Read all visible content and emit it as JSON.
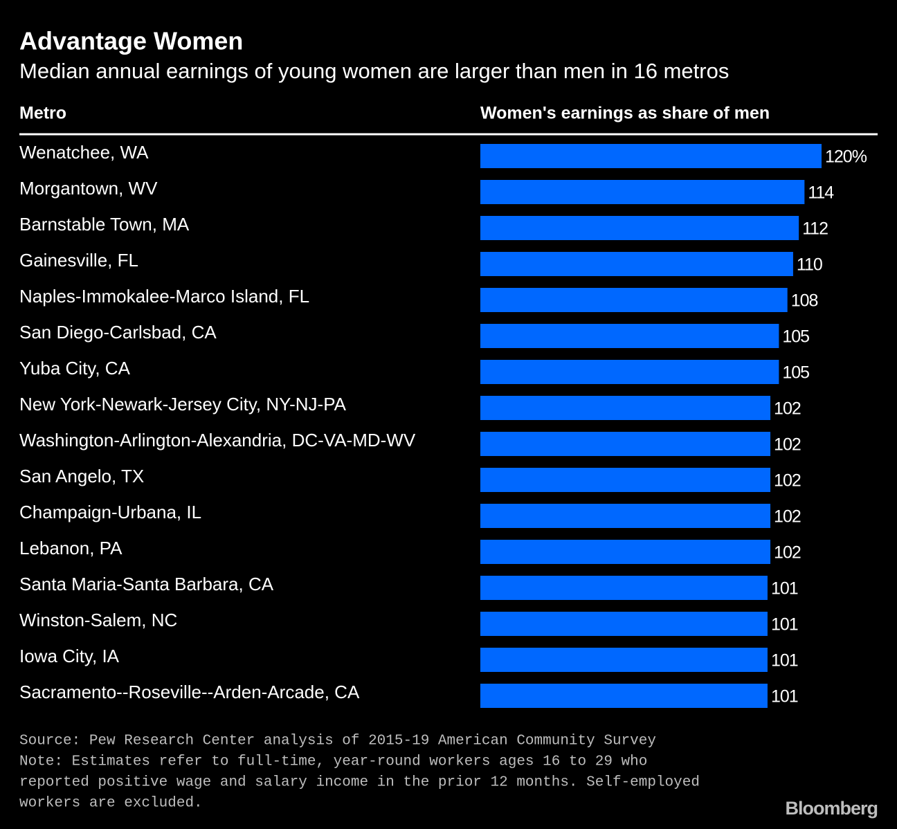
{
  "chart_data": {
    "type": "bar",
    "orientation": "horizontal",
    "title": "Advantage Women",
    "subtitle": "Median annual earnings of young women are larger than men in 16 metros",
    "category_header": "Metro",
    "value_header": "Women's earnings as share of men",
    "categories": [
      "Wenatchee, WA",
      "Morgantown, WV",
      "Barnstable Town, MA",
      "Gainesville, FL",
      "Naples-Immokalee-Marco Island, FL",
      "San Diego-Carlsbad, CA",
      "Yuba City, CA",
      "New York-Newark-Jersey City, NY-NJ-PA",
      "Washington-Arlington-Alexandria, DC-VA-MD-WV",
      "San Angelo, TX",
      "Champaign-Urbana, IL",
      "Lebanon, PA",
      "Santa Maria-Santa Barbara, CA",
      "Winston-Salem, NC",
      "Iowa City, IA",
      "Sacramento--Roseville--Arden-Arcade, CA"
    ],
    "values": [
      120,
      114,
      112,
      110,
      108,
      105,
      105,
      102,
      102,
      102,
      102,
      102,
      101,
      101,
      101,
      101
    ],
    "value_labels": [
      "120%",
      "114",
      "112",
      "110",
      "108",
      "105",
      "105",
      "102",
      "102",
      "102",
      "102",
      "102",
      "101",
      "101",
      "101",
      "101"
    ],
    "color": "#0068ff",
    "xlim": [
      0,
      120
    ],
    "source": "Source: Pew Research Center analysis of 2015-19 American Community Survey",
    "note": [
      "Note: Estimates refer to full-time, year-round workers ages 16 to 29 who",
      "reported positive wage and salary income in the prior 12 months. Self-employed",
      "workers are excluded."
    ],
    "brand": "Bloomberg"
  }
}
